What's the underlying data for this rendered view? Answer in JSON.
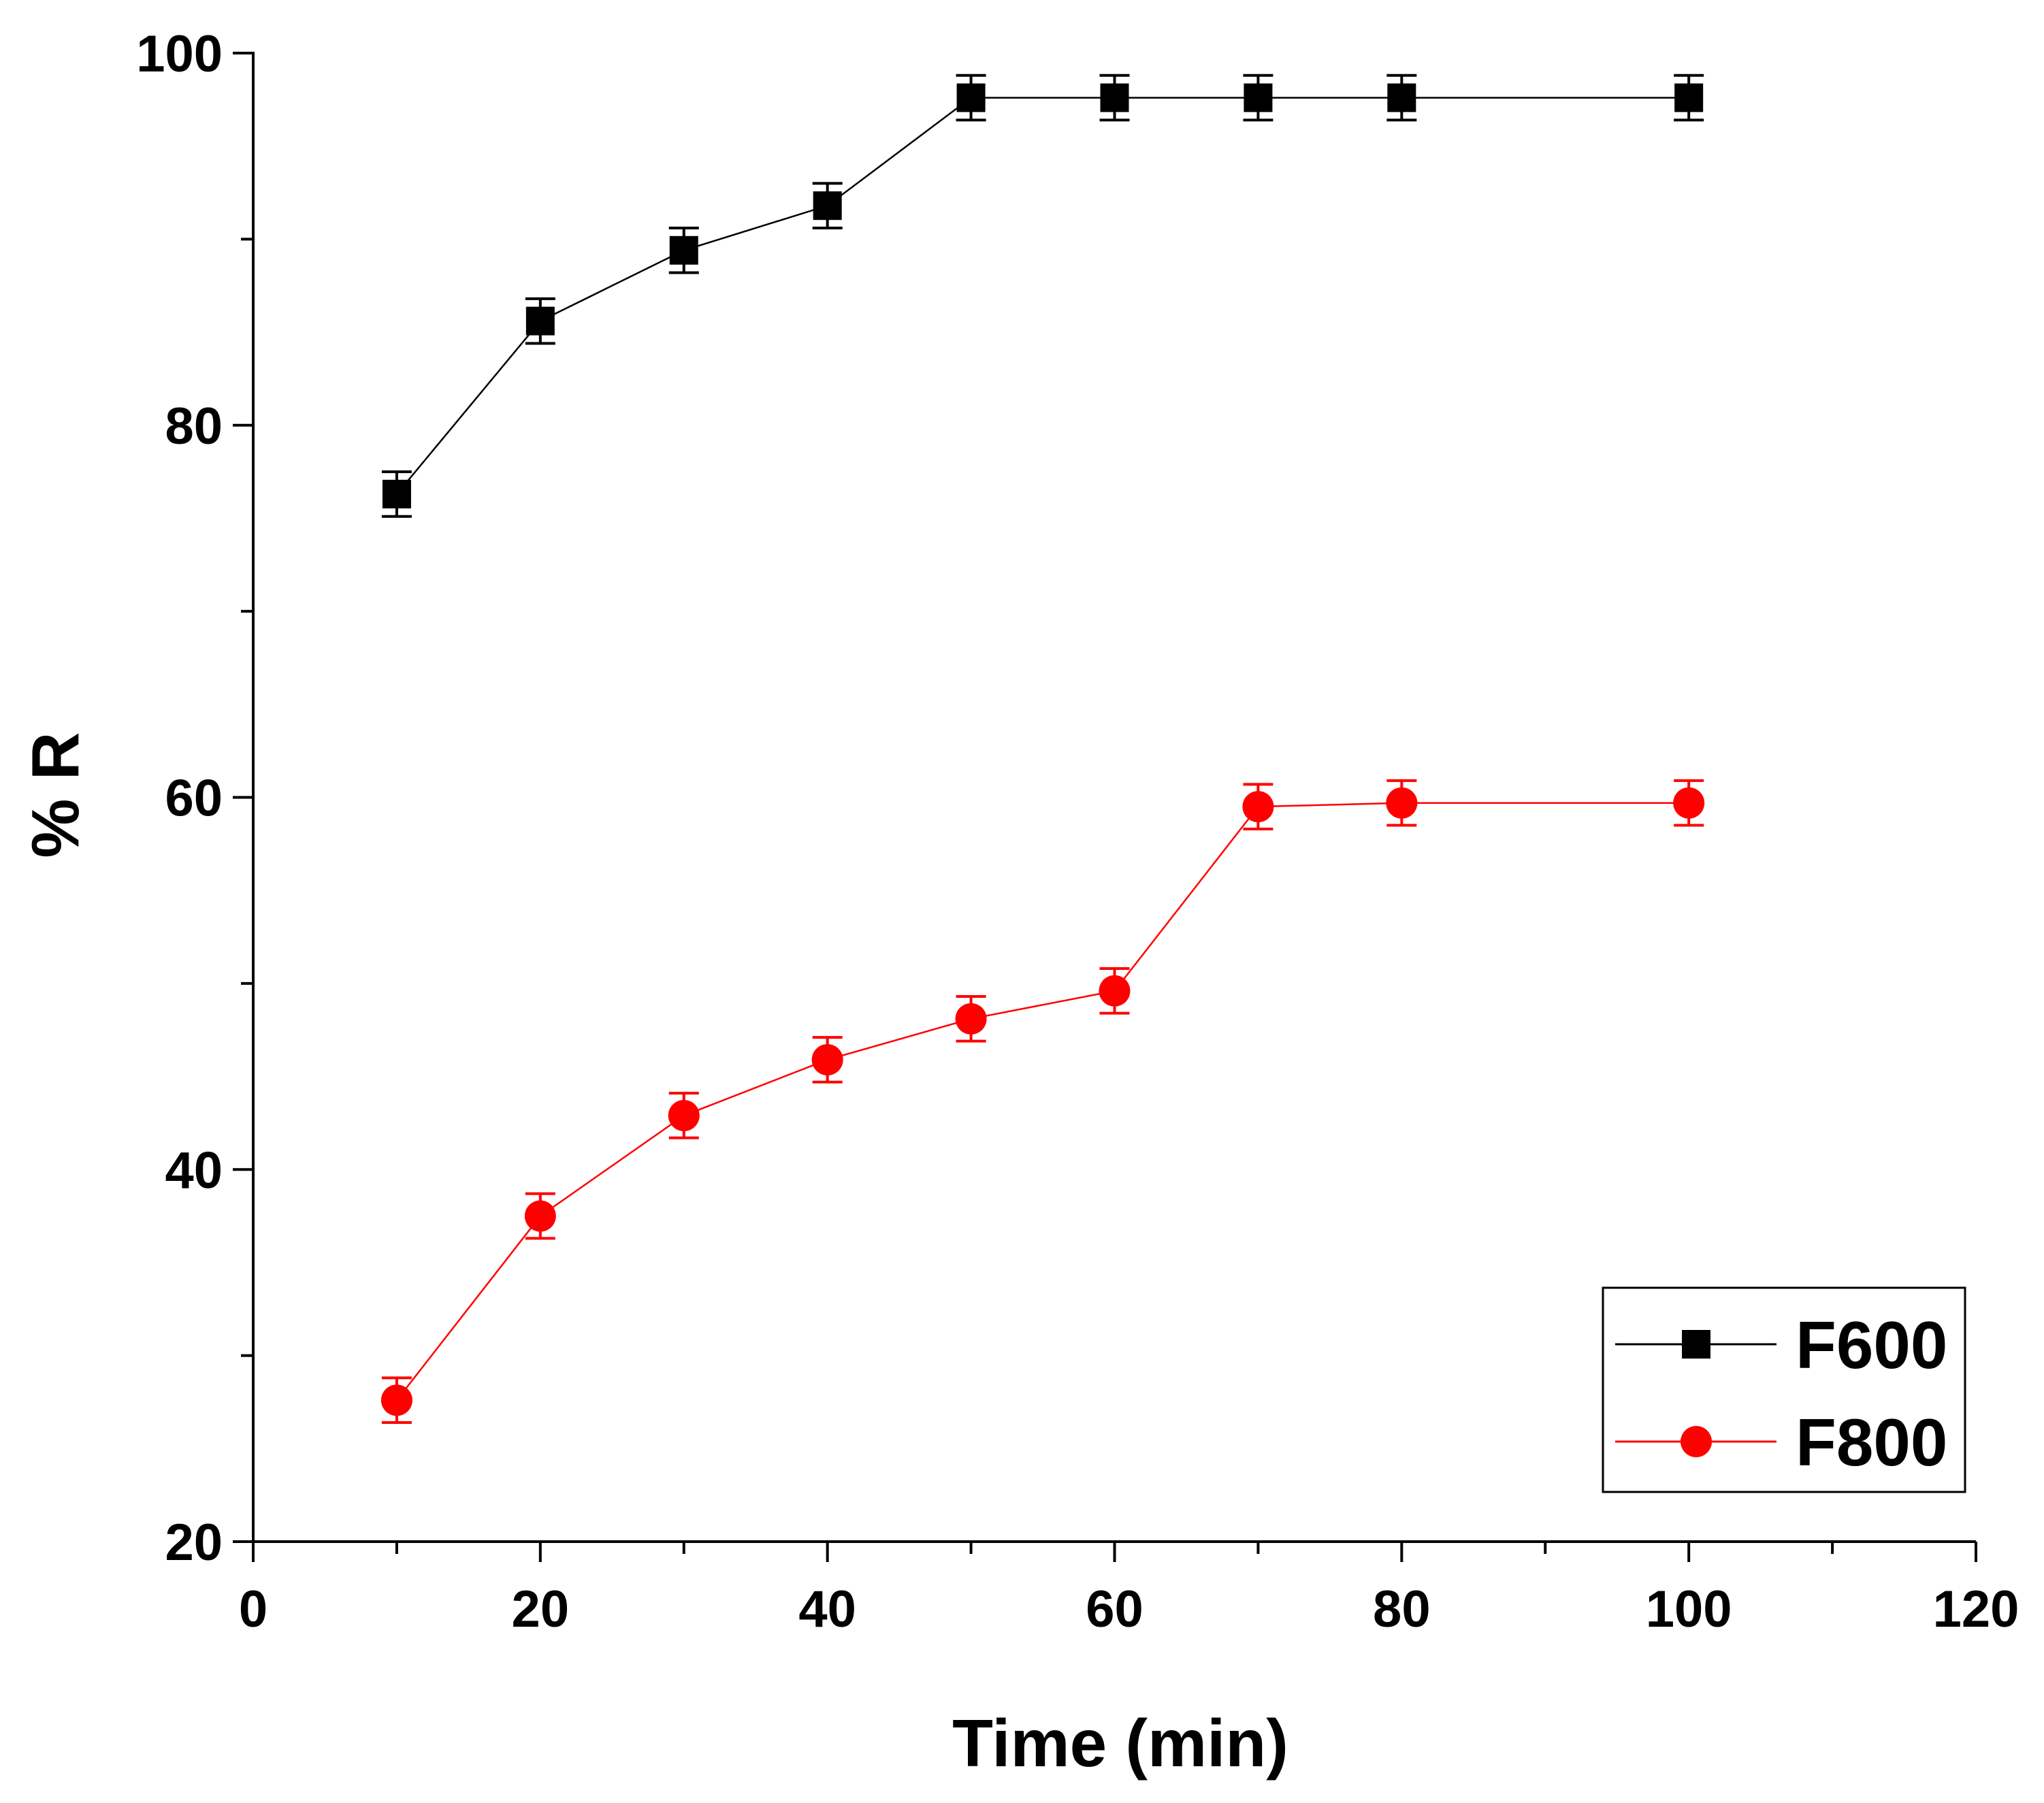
{
  "chart_data": {
    "type": "line",
    "title": "",
    "xlabel": "Time (min)",
    "ylabel": "% R",
    "xlim": [
      0,
      120
    ],
    "ylim": [
      20,
      100
    ],
    "xticks": [
      0,
      20,
      40,
      60,
      80,
      100,
      120
    ],
    "yticks": [
      20,
      40,
      60,
      80,
      100
    ],
    "grid": false,
    "legend_position": "bottom-right",
    "series": [
      {
        "name": "F600",
        "color": "#000000",
        "marker": "square",
        "x": [
          10,
          20,
          30,
          40,
          50,
          60,
          70,
          80,
          100
        ],
        "y": [
          76.3,
          85.6,
          89.4,
          91.8,
          97.6,
          97.6,
          97.6,
          97.6,
          97.6
        ],
        "err": [
          1.2,
          1.2,
          1.2,
          1.2,
          1.2,
          1.2,
          1.2,
          1.2,
          1.2
        ]
      },
      {
        "name": "F800",
        "color": "#ff0000",
        "marker": "circle",
        "x": [
          10,
          20,
          30,
          40,
          50,
          60,
          70,
          80,
          100
        ],
        "y": [
          27.6,
          37.5,
          42.9,
          45.9,
          48.1,
          49.6,
          59.5,
          59.7,
          59.7
        ],
        "err": [
          1.2,
          1.2,
          1.2,
          1.2,
          1.2,
          1.2,
          1.2,
          1.2,
          1.2
        ]
      }
    ]
  }
}
